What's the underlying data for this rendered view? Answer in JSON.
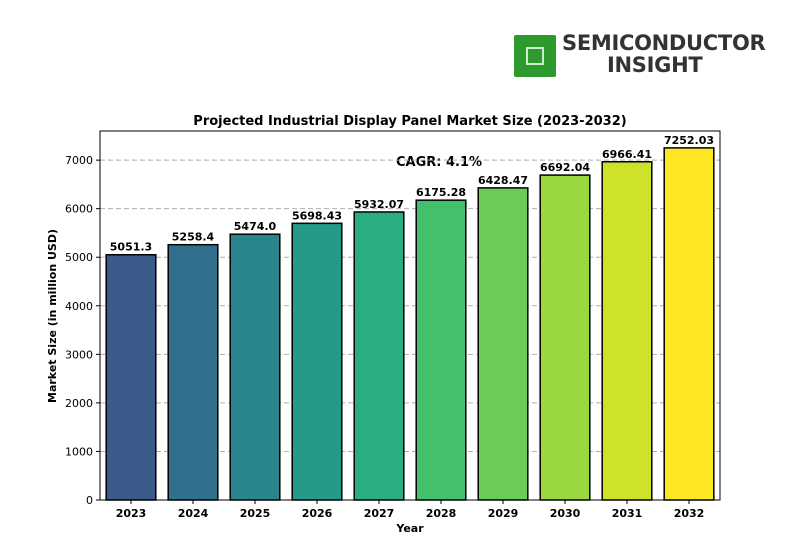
{
  "logo": {
    "line1": "SEMICONDUCTOR",
    "line2": "INSIGHT"
  },
  "chart_data": {
    "type": "bar",
    "title": "Projected Industrial Display Panel Market Size (2023-2032)",
    "xlabel": "Year",
    "ylabel": "Market Size (in million USD)",
    "annotation": "CAGR: 4.1%",
    "categories": [
      "2023",
      "2024",
      "2025",
      "2026",
      "2027",
      "2028",
      "2029",
      "2030",
      "2031",
      "2032"
    ],
    "values": [
      5051.3,
      5258.4,
      5474.0,
      5698.43,
      5932.07,
      6175.28,
      6428.47,
      6692.04,
      6966.41,
      7252.03
    ],
    "value_labels": [
      "5051.3",
      "5258.4",
      "5474.0",
      "5698.43",
      "5932.07",
      "6175.28",
      "6428.47",
      "6692.04",
      "6966.41",
      "7252.03"
    ],
    "ylim": [
      0,
      7600
    ],
    "yticks": [
      0,
      1000,
      2000,
      3000,
      4000,
      5000,
      6000,
      7000
    ],
    "grid": "y-dashed",
    "colors": [
      "#3b5b8b",
      "#31708d",
      "#2b858c",
      "#259a89",
      "#2aae7f",
      "#42c06c",
      "#6acc57",
      "#9ad840",
      "#cde229",
      "#fde725"
    ]
  }
}
